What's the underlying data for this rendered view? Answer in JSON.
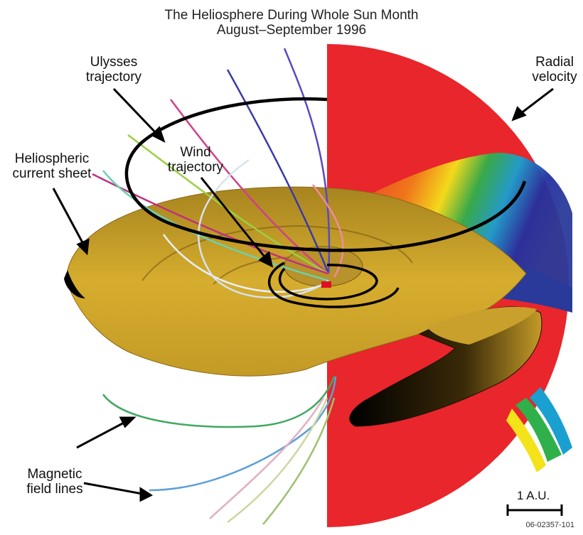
{
  "title": {
    "line1": "The Heliosphere During Whole Sun Month",
    "line2": "August–September 1996"
  },
  "labels": {
    "ulysses": [
      "Ulysses",
      "trajectory"
    ],
    "radial": [
      "Radial",
      "velocity"
    ],
    "wind": [
      "Wind",
      "trajectory"
    ],
    "current_sheet": [
      "Heliospheric",
      "current sheet"
    ],
    "field_lines": [
      "Magnetic",
      "field lines"
    ]
  },
  "scale_bar": "1 A.U.",
  "figure_id": "06-02357-101",
  "colors": {
    "sheet_gold": "#c8a02a",
    "sheet_dark": "#1a1205",
    "radial_red": "#e8262b",
    "trajectory": "#000000"
  }
}
